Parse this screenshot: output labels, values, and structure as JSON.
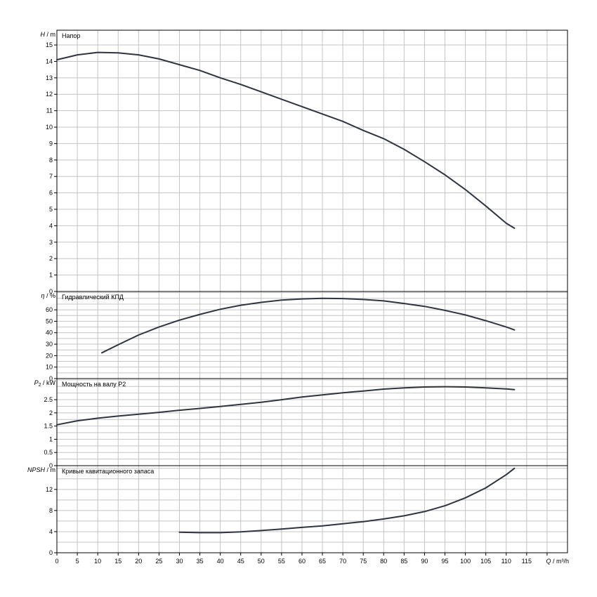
{
  "chart_data": {
    "type": "line",
    "x_axis": {
      "label_symbol": "Q",
      "label_unit": "m³/h",
      "range": [
        0,
        125
      ],
      "ticks": [
        0,
        5,
        10,
        15,
        20,
        25,
        30,
        35,
        40,
        45,
        50,
        55,
        60,
        65,
        70,
        75,
        80,
        85,
        90,
        95,
        100,
        105,
        110,
        115
      ],
      "grid_step": 5
    },
    "panels": [
      {
        "id": "head",
        "title": "Напор",
        "ylabel_symbol": "H",
        "ylabel_unit": "m",
        "ylim": [
          0,
          15.9
        ],
        "yticks": [
          0,
          1,
          2,
          3,
          4,
          5,
          6,
          7,
          8,
          9,
          10,
          11,
          12,
          13,
          14,
          15
        ],
        "ytick_labels": [
          "0",
          "1",
          "2",
          "3",
          "4",
          "5",
          "6",
          "7",
          "8",
          "9",
          "10",
          "11",
          "12",
          "13",
          "14",
          "15"
        ],
        "grid": [
          0,
          1,
          2,
          3,
          4,
          5,
          6,
          7,
          8,
          9,
          10,
          11,
          12,
          13,
          14,
          15
        ],
        "x": [
          0,
          5,
          10,
          15,
          20,
          25,
          30,
          35,
          40,
          45,
          50,
          55,
          60,
          65,
          70,
          75,
          80,
          85,
          90,
          95,
          100,
          105,
          110,
          112
        ],
        "values": [
          14.1,
          14.4,
          14.55,
          14.52,
          14.4,
          14.15,
          13.8,
          13.45,
          13.0,
          12.6,
          12.15,
          11.7,
          11.25,
          10.8,
          10.35,
          9.8,
          9.3,
          8.65,
          7.9,
          7.1,
          6.2,
          5.2,
          4.15,
          3.85
        ]
      },
      {
        "id": "efficiency",
        "title": "Гидравлический КПД",
        "ylabel_symbol": "η",
        "ylabel_unit": "%",
        "ylim": [
          0,
          76
        ],
        "yticks": [
          0,
          10,
          20,
          30,
          40,
          50,
          60
        ],
        "ytick_labels": [
          "0",
          "10",
          "20",
          "30",
          "40",
          "50",
          "60"
        ],
        "grid": [
          0,
          5,
          10,
          15,
          20,
          25,
          30,
          35,
          40,
          45,
          50,
          55,
          60,
          65,
          70,
          75
        ],
        "x": [
          11,
          15,
          20,
          25,
          30,
          35,
          40,
          45,
          50,
          55,
          60,
          65,
          70,
          75,
          80,
          85,
          90,
          95,
          100,
          105,
          110,
          112
        ],
        "values": [
          22.5,
          29.5,
          38,
          45,
          51,
          56,
          60.5,
          64,
          66.5,
          68.5,
          69.5,
          70,
          69.8,
          69,
          67.8,
          65.5,
          63,
          59.5,
          55.5,
          50.5,
          45,
          42.5
        ]
      },
      {
        "id": "power",
        "title": "Мощность на валу P2",
        "ylabel_symbol": "P",
        "ylabel_sub": "2",
        "ylabel_unit": "kW",
        "ylim": [
          0,
          3.3
        ],
        "yticks": [
          0,
          0.5,
          1,
          1.5,
          2,
          2.5
        ],
        "ytick_labels": [
          "0",
          "0.5",
          "1",
          "1.5",
          "2",
          "2.5"
        ],
        "grid": [
          0,
          0.25,
          0.5,
          0.75,
          1,
          1.25,
          1.5,
          1.75,
          2,
          2.25,
          2.5,
          2.75,
          3,
          3.25
        ],
        "x": [
          0,
          5,
          10,
          15,
          20,
          25,
          30,
          35,
          40,
          45,
          50,
          55,
          60,
          65,
          70,
          75,
          80,
          85,
          90,
          95,
          100,
          105,
          110,
          112
        ],
        "values": [
          1.55,
          1.7,
          1.8,
          1.88,
          1.95,
          2.02,
          2.1,
          2.17,
          2.24,
          2.32,
          2.4,
          2.5,
          2.6,
          2.68,
          2.76,
          2.83,
          2.9,
          2.95,
          2.98,
          2.99,
          2.98,
          2.95,
          2.91,
          2.88
        ]
      },
      {
        "id": "npsh",
        "title": "Кривые кавитационного запаса",
        "ylabel_symbol": "NPSH",
        "ylabel_unit": "m",
        "ylim": [
          0,
          16.5
        ],
        "yticks": [
          0,
          4,
          8,
          12
        ],
        "ytick_labels": [
          "0",
          "4",
          "8",
          "12"
        ],
        "grid": [
          0,
          2,
          4,
          6,
          8,
          10,
          12,
          14,
          16
        ],
        "x": [
          30,
          35,
          40,
          45,
          50,
          55,
          60,
          65,
          70,
          75,
          80,
          85,
          90,
          95,
          100,
          105,
          110,
          112
        ],
        "values": [
          3.9,
          3.8,
          3.8,
          3.95,
          4.2,
          4.5,
          4.8,
          5.1,
          5.5,
          5.9,
          6.4,
          7.0,
          7.8,
          8.9,
          10.4,
          12.3,
          14.8,
          16.0
        ]
      }
    ]
  }
}
